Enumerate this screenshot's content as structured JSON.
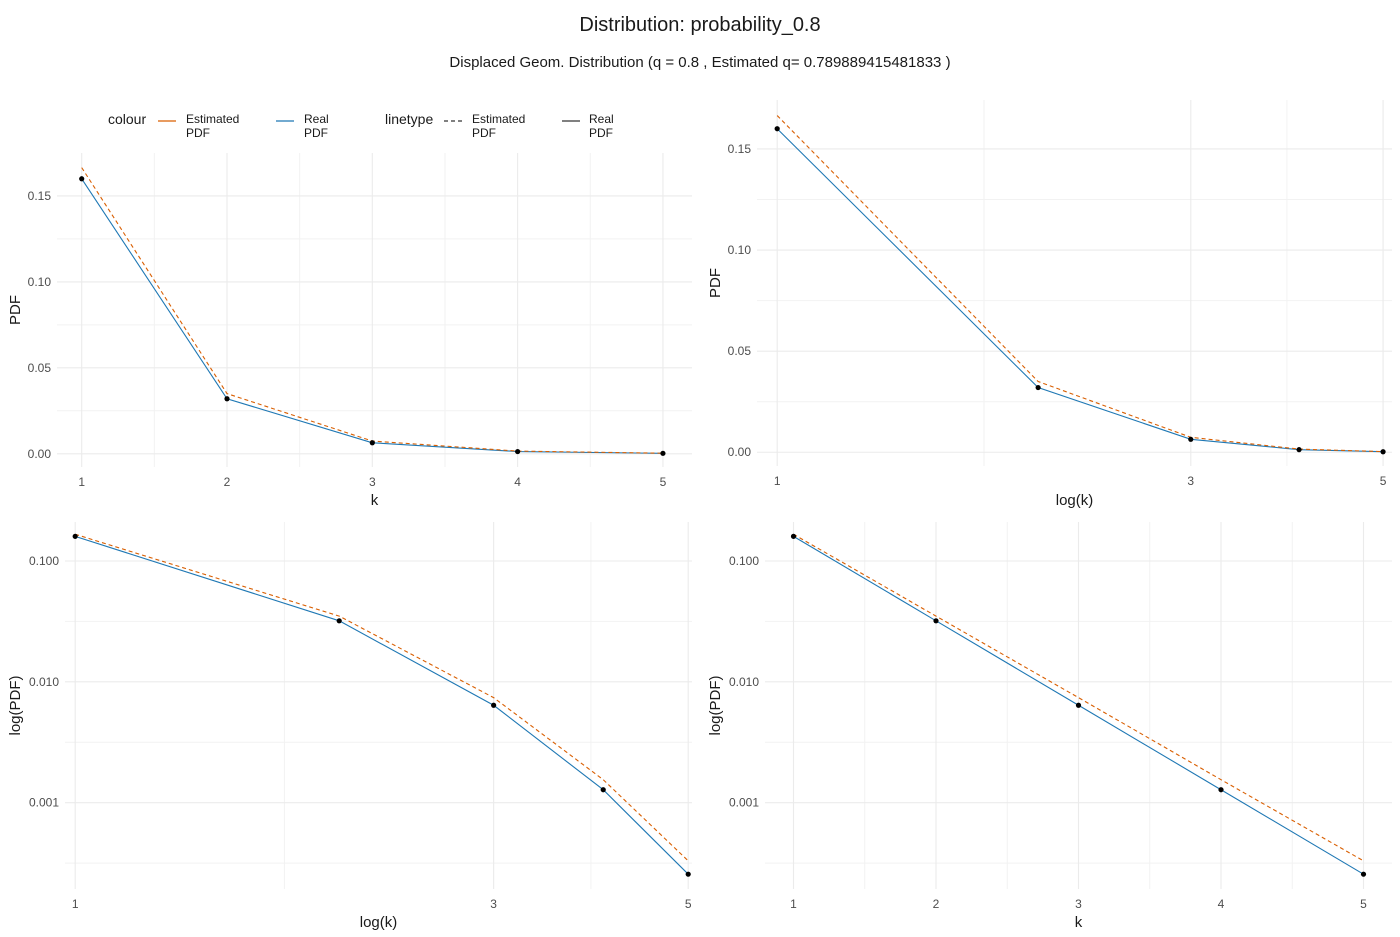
{
  "title": "Distribution:  probability_0.8",
  "subtitle": "Displaced Geom. Distribution (q = 0.8 , Estimated q= 0.789889415481833 )",
  "legend": {
    "colour_title": "colour",
    "linetype_title": "linetype",
    "colour_items": [
      {
        "label": "Estimated PDF",
        "color": "#d95f02"
      },
      {
        "label": "Real PDF",
        "color": "#1f78b4"
      }
    ],
    "linetype_items": [
      {
        "label": "Estimated PDF",
        "style": "dashed"
      },
      {
        "label": "Real PDF",
        "style": "solid"
      }
    ]
  },
  "colors": {
    "estimated": "#d95f02",
    "real": "#1f78b4",
    "points": "#000000",
    "grid": "#ebebeb"
  },
  "chart_data": [
    {
      "type": "line",
      "xlabel": "k",
      "ylabel": "PDF",
      "x_scale": "linear",
      "y_scale": "linear",
      "xlim": [
        1,
        5
      ],
      "ylim": [
        0,
        0.166
      ],
      "xticks": [
        1,
        2,
        3,
        4,
        5
      ],
      "yticks": [
        0.0,
        0.05,
        0.1,
        0.15
      ],
      "ytick_labels": [
        "0.00",
        "0.05",
        "0.10",
        "0.15"
      ],
      "x": [
        1,
        2,
        3,
        4,
        5
      ],
      "series": [
        {
          "name": "Real PDF",
          "linetype": "solid",
          "values": [
            0.16,
            0.032,
            0.0064,
            0.00128,
            0.000256
          ]
        },
        {
          "name": "Estimated PDF",
          "linetype": "dashed",
          "values": [
            0.1665,
            0.035,
            0.0074,
            0.00155,
            0.00033
          ]
        }
      ],
      "points": [
        0.16,
        0.032,
        0.0064,
        0.00128,
        0.000256
      ],
      "grid": true
    },
    {
      "type": "line",
      "xlabel": "log(k)",
      "ylabel": "PDF",
      "x_scale": "log",
      "y_scale": "linear",
      "xlim": [
        1,
        5
      ],
      "ylim": [
        0,
        0.166
      ],
      "xticks": [
        1,
        3,
        5
      ],
      "yticks": [
        0.0,
        0.05,
        0.1,
        0.15
      ],
      "ytick_labels": [
        "0.00",
        "0.05",
        "0.10",
        "0.15"
      ],
      "x": [
        1,
        2,
        3,
        4,
        5
      ],
      "series": [
        {
          "name": "Real PDF",
          "linetype": "solid",
          "values": [
            0.16,
            0.032,
            0.0064,
            0.00128,
            0.000256
          ]
        },
        {
          "name": "Estimated PDF",
          "linetype": "dashed",
          "values": [
            0.1665,
            0.035,
            0.0074,
            0.00155,
            0.00033
          ]
        }
      ],
      "points": [
        0.16,
        0.032,
        0.0064,
        0.00128,
        0.000256
      ],
      "grid": true
    },
    {
      "type": "line",
      "xlabel": "log(k)",
      "ylabel": "log(PDF)",
      "x_scale": "log",
      "y_scale": "log",
      "xlim": [
        1,
        5
      ],
      "ylim": [
        0.000256,
        0.16
      ],
      "xticks": [
        1,
        3,
        5
      ],
      "yticks": [
        0.001,
        0.01,
        0.1
      ],
      "ytick_labels": [
        "0.001",
        "0.010",
        "0.100"
      ],
      "x": [
        1,
        2,
        3,
        4,
        5
      ],
      "series": [
        {
          "name": "Real PDF",
          "linetype": "solid",
          "values": [
            0.16,
            0.032,
            0.0064,
            0.00128,
            0.000256
          ]
        },
        {
          "name": "Estimated PDF",
          "linetype": "dashed",
          "values": [
            0.1665,
            0.035,
            0.0074,
            0.00155,
            0.00033
          ]
        }
      ],
      "points": [
        0.16,
        0.032,
        0.0064,
        0.00128,
        0.000256
      ],
      "grid": true
    },
    {
      "type": "line",
      "xlabel": "k",
      "ylabel": "log(PDF)",
      "x_scale": "linear",
      "y_scale": "log",
      "xlim": [
        1,
        5
      ],
      "ylim": [
        0.000256,
        0.16
      ],
      "xticks": [
        1,
        2,
        3,
        4,
        5
      ],
      "yticks": [
        0.001,
        0.01,
        0.1
      ],
      "ytick_labels": [
        "0.001",
        "0.010",
        "0.100"
      ],
      "x": [
        1,
        2,
        3,
        4,
        5
      ],
      "series": [
        {
          "name": "Real PDF",
          "linetype": "solid",
          "values": [
            0.16,
            0.032,
            0.0064,
            0.00128,
            0.000256
          ]
        },
        {
          "name": "Estimated PDF",
          "linetype": "dashed",
          "values": [
            0.1665,
            0.035,
            0.0074,
            0.00155,
            0.00033
          ]
        }
      ],
      "points": [
        0.16,
        0.032,
        0.0064,
        0.00128,
        0.000256
      ],
      "grid": true
    }
  ]
}
